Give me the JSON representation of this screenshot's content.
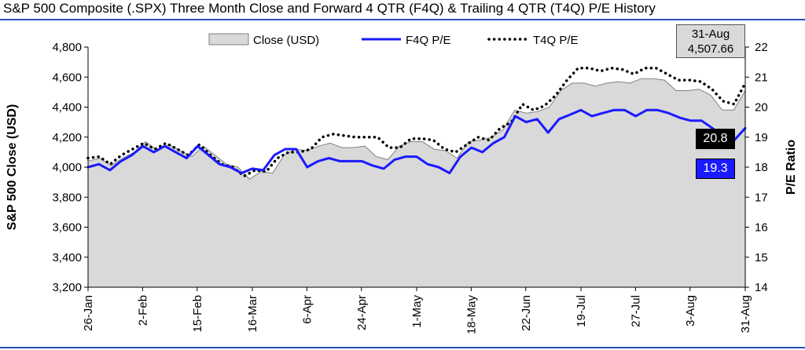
{
  "title": "S&P 500 Composite (.SPX) Three Month Close and Forward 4 QTR (F4Q) & Trailing 4 QTR (T4Q) P/E History",
  "info_box": {
    "date": "31-Aug",
    "value": "4,507.66"
  },
  "end_labels": {
    "t4q": "20.8",
    "f4q": "19.3"
  },
  "colors": {
    "close_fill": "#d9d9d9",
    "close_stroke": "#808080",
    "f4q": "#1a1aff",
    "t4q": "#000000",
    "rule": "#2b4fb5"
  },
  "chart_data": {
    "type": "area",
    "title": "S&P 500 Composite (.SPX) Three Month Close and Forward 4 QTR (F4Q) & Trailing 4 QTR (T4Q) P/E History",
    "xlabel": "",
    "ylabel": "S&P 500 Close (USD)",
    "y2label": "P/E Ratio",
    "ylim": [
      3200,
      4800
    ],
    "y2lim": [
      14,
      22
    ],
    "yticks": [
      "3,200",
      "3,400",
      "3,600",
      "3,800",
      "4,000",
      "4,200",
      "4,400",
      "4,600",
      "4,800"
    ],
    "y2ticks": [
      "14",
      "15",
      "16",
      "17",
      "18",
      "19",
      "20",
      "21",
      "22"
    ],
    "x_tick_labels": [
      "26-Jan",
      "2-Feb",
      "15-Feb",
      "16-Mar",
      "6-Apr",
      "24-Apr",
      "1-May",
      "18-May",
      "22-Jun",
      "19-Jul",
      "27-Jul",
      "3-Aug",
      "31-Aug"
    ],
    "legend": [
      "Close (USD)",
      "F4Q P/E",
      "T4Q P/E"
    ],
    "legend_position": "top",
    "grid": false,
    "series": [
      {
        "name": "Close (USD)",
        "axis": "left",
        "values": [
          4040,
          4060,
          4010,
          4060,
          4100,
          4170,
          4110,
          4150,
          4110,
          4070,
          4140,
          4080,
          4020,
          4000,
          3920,
          3970,
          3960,
          4080,
          4120,
          4110,
          4140,
          4160,
          4130,
          4130,
          4140,
          4070,
          4050,
          4140,
          4170,
          4170,
          4120,
          4110,
          4060,
          4170,
          4180,
          4200,
          4250,
          4380,
          4360,
          4370,
          4400,
          4510,
          4560,
          4560,
          4540,
          4560,
          4570,
          4560,
          4590,
          4590,
          4580,
          4510,
          4510,
          4520,
          4480,
          4380,
          4380,
          4510
        ]
      },
      {
        "name": "F4Q P/E",
        "axis": "right",
        "values": [
          18.0,
          18.1,
          17.9,
          18.2,
          18.4,
          18.7,
          18.5,
          18.7,
          18.5,
          18.3,
          18.7,
          18.4,
          18.1,
          18.0,
          17.8,
          17.95,
          17.9,
          18.4,
          18.6,
          18.6,
          18.0,
          18.2,
          18.3,
          18.2,
          18.2,
          18.2,
          18.05,
          17.95,
          18.25,
          18.35,
          18.35,
          18.1,
          18.0,
          17.8,
          18.35,
          18.65,
          18.5,
          18.8,
          19.0,
          19.7,
          19.5,
          19.6,
          19.15,
          19.6,
          19.75,
          19.9,
          19.7,
          19.8,
          19.9,
          19.9,
          19.7,
          19.9,
          19.9,
          19.8,
          19.65,
          19.55,
          19.55,
          19.3,
          19.0,
          18.9,
          19.3
        ]
      },
      {
        "name": "T4Q P/E",
        "axis": "right",
        "values": [
          18.3,
          18.35,
          18.1,
          18.4,
          18.6,
          18.8,
          18.6,
          18.8,
          18.6,
          18.4,
          18.75,
          18.4,
          18.1,
          18.0,
          17.7,
          17.9,
          17.85,
          18.3,
          18.5,
          18.5,
          18.6,
          19.0,
          19.1,
          19.05,
          19.0,
          19.0,
          19.0,
          18.65,
          18.65,
          18.95,
          18.95,
          18.9,
          18.6,
          18.5,
          18.75,
          19.0,
          18.9,
          19.3,
          19.5,
          20.1,
          19.9,
          20.05,
          20.4,
          20.9,
          21.3,
          21.3,
          21.2,
          21.3,
          21.25,
          21.1,
          21.3,
          21.3,
          21.1,
          20.9,
          20.9,
          20.85,
          20.6,
          20.2,
          20.1,
          20.8
        ]
      }
    ]
  }
}
